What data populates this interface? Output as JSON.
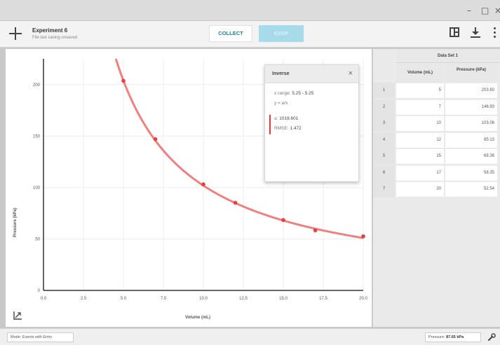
{
  "window": {
    "minimize_glyph": "–",
    "maximize_glyph": "□",
    "close_glyph": "×"
  },
  "toolbar": {
    "experiment_title": "Experiment 6",
    "experiment_subtitle": "File last saving unsaved",
    "collect_label": "COLLECT",
    "keep_label": "KEEP",
    "icons": [
      "plus-icon",
      "layout-icon",
      "download-icon",
      "more-vertical-icon"
    ]
  },
  "colors": {
    "accent": "#1b7ea6",
    "keep_disabled": "#a7dbea",
    "series": "#e83e3e",
    "fit_curve": "#f08080"
  },
  "fit_box": {
    "name": "Inverse",
    "close_glyph": "×",
    "x_range_label": "x range:",
    "x_range_value": "5.25 - 5.25",
    "equation": "y = a/x",
    "a_label": "a:",
    "a_value": "1018.601",
    "rmse_label": "RMSE:",
    "rmse_value": "1.472"
  },
  "graph": {
    "xlabel": "Volume (mL)",
    "ylabel": "Pressure (kPa)"
  },
  "table": {
    "dataset_name": "Data Set 1",
    "columns": [
      "Volume (mL)",
      "Pressure (kPa)"
    ],
    "rows": [
      {
        "index": "1",
        "volume": "5",
        "pressure": "203.60"
      },
      {
        "index": "2",
        "volume": "7",
        "pressure": "146.93"
      },
      {
        "index": "3",
        "volume": "10",
        "pressure": "103.06"
      },
      {
        "index": "4",
        "volume": "12",
        "pressure": "85.13"
      },
      {
        "index": "5",
        "volume": "15",
        "pressure": "68.36"
      },
      {
        "index": "6",
        "volume": "17",
        "pressure": "58.35"
      },
      {
        "index": "7",
        "volume": "20",
        "pressure": "52.54"
      }
    ]
  },
  "status": {
    "mode_label": "Mode: Events with Entry",
    "meter_label": "Pressure:",
    "meter_value": "87.65 kPa"
  },
  "chart_data": {
    "type": "scatter",
    "title": "",
    "xlabel": "Volume (mL)",
    "ylabel": "Pressure (kPa)",
    "xlim": [
      0,
      20
    ],
    "ylim": [
      0,
      225
    ],
    "x_ticks": [
      "0.0",
      "2.5",
      "5.0",
      "7.5",
      "10.0",
      "12.5",
      "15.0",
      "17.5",
      "20.0"
    ],
    "y_ticks": [
      "0",
      "50",
      "100",
      "150",
      "200"
    ],
    "grid": true,
    "legend": "none",
    "series": [
      {
        "x": [
          5,
          7,
          10,
          12,
          15,
          17,
          20
        ],
        "y": [
          203.6,
          146.93,
          103.06,
          85.13,
          68.36,
          58.35,
          52.54
        ]
      }
    ],
    "fit": {
      "model": "inverse",
      "equation": "y = a/x",
      "a": 1018.601
    }
  }
}
